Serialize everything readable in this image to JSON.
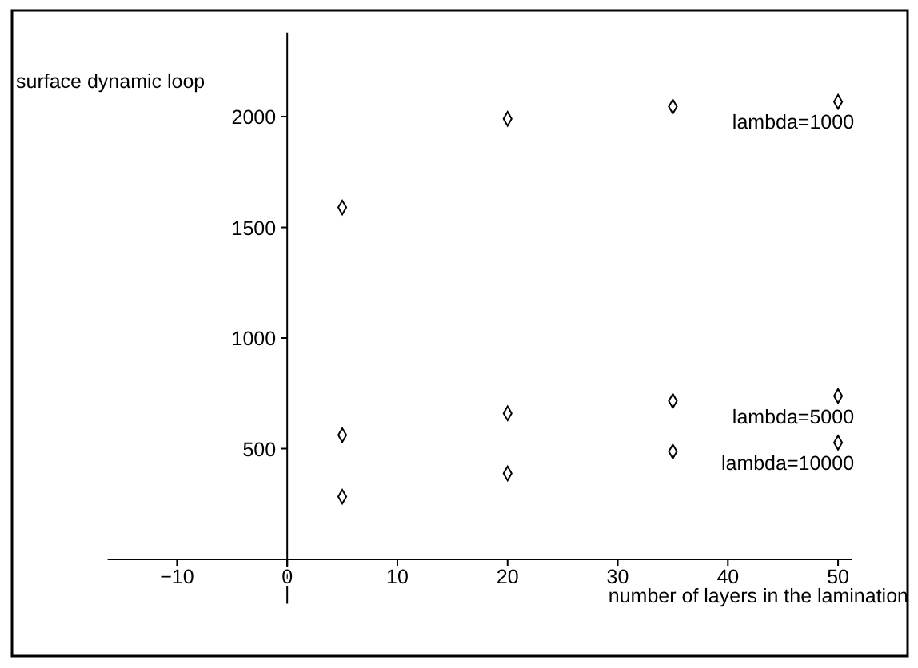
{
  "chart_data": {
    "type": "scatter",
    "xlabel": "number of layers in the lamination",
    "ylabel": "surface dynamic loop",
    "x": [
      5,
      20,
      35,
      50
    ],
    "series": [
      {
        "name": "lambda=1000",
        "color": "#000000",
        "values": [
          1590,
          1990,
          2045,
          2067
        ]
      },
      {
        "name": "lambda=5000",
        "color": "#000000",
        "values": [
          561,
          660,
          716,
          738
        ]
      },
      {
        "name": "lambda=10000",
        "color": "#000000",
        "values": [
          283,
          388,
          487,
          527
        ]
      }
    ],
    "xlim": [
      -16.3,
      51.3
    ],
    "ylim": [
      -200,
      2380
    ],
    "xticks": [
      -10,
      0,
      10,
      20,
      30,
      40,
      50
    ],
    "yticks": [
      500,
      1000,
      1500,
      2000
    ],
    "marker": "diamond",
    "grid": false
  }
}
